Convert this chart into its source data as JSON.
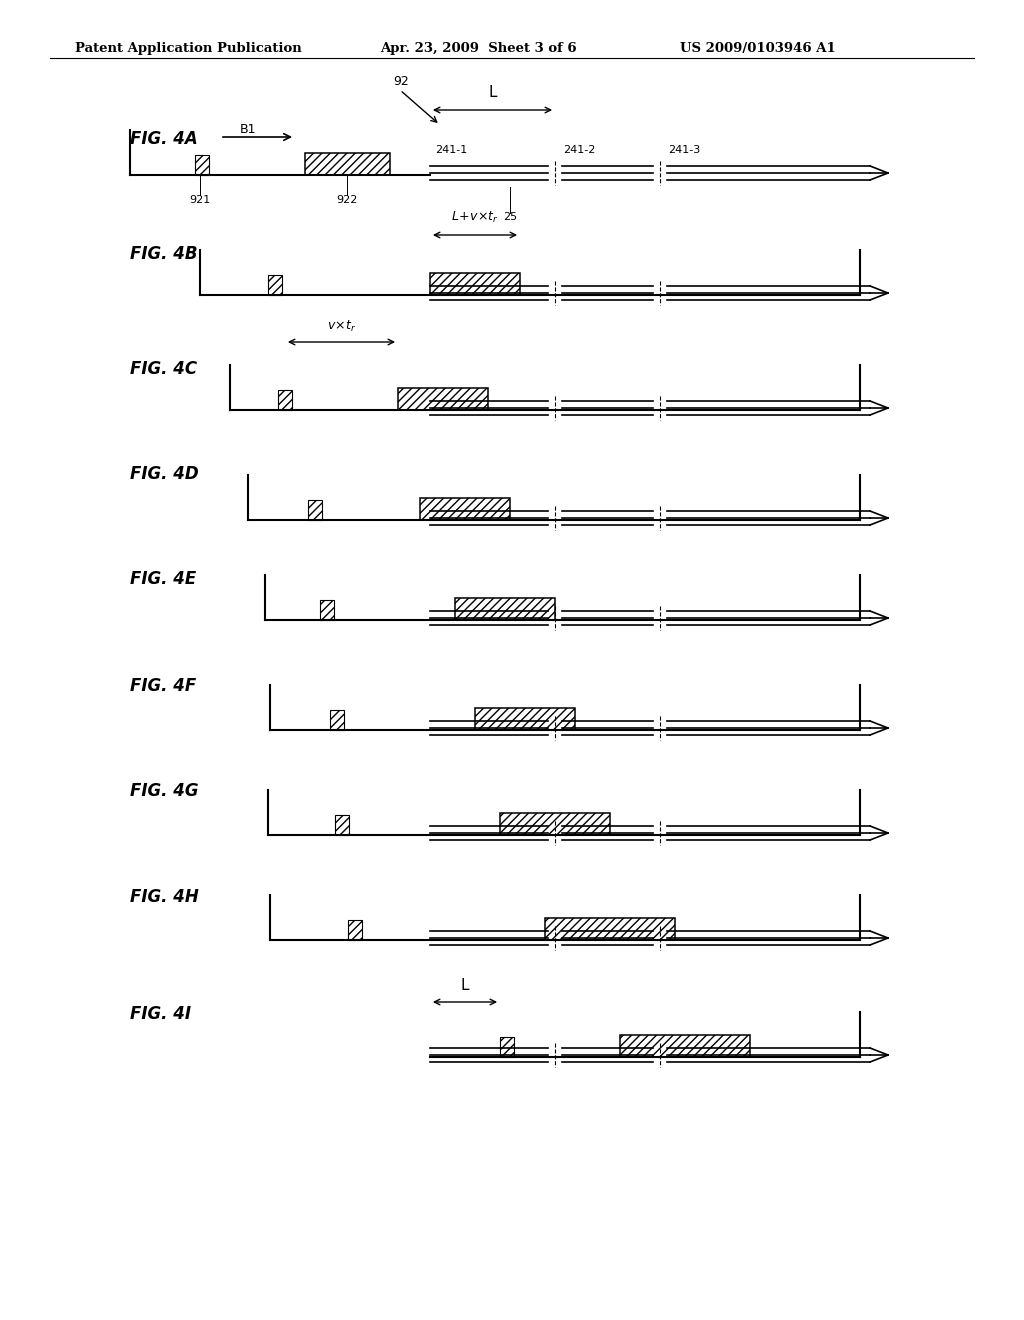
{
  "bg": "#ffffff",
  "lc": "#000000",
  "header_left": "Patent Application Publication",
  "header_mid": "Apr. 23, 2009  Sheet 3 of 6",
  "header_right": "US 2009/0103946 A1",
  "figs": [
    "FIG. 4A",
    "FIG. 4B",
    "FIG. 4C",
    "FIG. 4D",
    "FIG. 4E",
    "FIG. 4F",
    "FIG. 4G",
    "FIG. 4H",
    "FIG. 4I"
  ]
}
